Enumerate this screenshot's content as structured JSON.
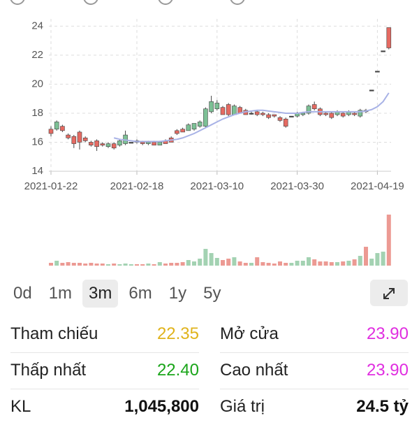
{
  "chart_data": {
    "type": "candlestick",
    "categories": [
      "2021-01-22",
      null,
      null,
      null,
      null,
      null,
      null,
      null,
      null,
      null,
      null,
      null,
      null,
      null,
      null,
      "2021-02-18",
      null,
      null,
      null,
      null,
      null,
      null,
      null,
      null,
      null,
      null,
      null,
      null,
      null,
      "2021-03-10",
      null,
      null,
      null,
      null,
      null,
      null,
      null,
      null,
      null,
      null,
      null,
      null,
      null,
      "2021-03-30",
      null,
      null,
      null,
      null,
      null,
      null,
      null,
      null,
      null,
      null,
      null,
      null,
      null,
      "2021-04-19",
      null,
      null
    ],
    "ohlc": [
      [
        16.9,
        17.1,
        16.4,
        16.6
      ],
      [
        16.9,
        17.5,
        16.8,
        17.4
      ],
      [
        17.1,
        17.2,
        16.7,
        16.8
      ],
      [
        16.5,
        16.6,
        16.2,
        16.3
      ],
      [
        16.4,
        16.5,
        15.6,
        15.9
      ],
      [
        16.7,
        16.8,
        15.5,
        16.0
      ],
      [
        16.3,
        16.4,
        16.0,
        16.1
      ],
      [
        16.0,
        16.1,
        15.7,
        15.8
      ],
      [
        16.1,
        16.2,
        15.4,
        15.7
      ],
      [
        15.9,
        16.0,
        15.7,
        15.8
      ],
      [
        15.7,
        16.0,
        15.6,
        15.9
      ],
      [
        15.9,
        16.0,
        15.5,
        15.6
      ],
      [
        15.8,
        16.2,
        15.7,
        16.1
      ],
      [
        15.9,
        16.8,
        15.8,
        16.5
      ],
      [
        16.0,
        16.0,
        16.0,
        16.0
      ],
      [
        16.1,
        16.2,
        15.9,
        16.0
      ],
      [
        16.0,
        16.1,
        15.8,
        15.9
      ],
      [
        15.9,
        16.1,
        15.8,
        16.0
      ],
      [
        16.0,
        16.1,
        15.8,
        15.8
      ],
      [
        15.8,
        16.1,
        15.8,
        16.0
      ],
      [
        16.1,
        16.2,
        15.9,
        15.9
      ],
      [
        16.3,
        16.4,
        16.0,
        16.0
      ],
      [
        16.8,
        16.9,
        16.5,
        16.6
      ],
      [
        16.9,
        17.0,
        16.7,
        16.7
      ],
      [
        16.8,
        17.3,
        16.8,
        17.2
      ],
      [
        16.9,
        17.3,
        16.8,
        17.3
      ],
      [
        17.1,
        17.5,
        17.0,
        17.4
      ],
      [
        17.1,
        18.4,
        17.0,
        18.3
      ],
      [
        18.1,
        19.2,
        18.0,
        18.8
      ],
      [
        18.3,
        18.9,
        18.2,
        18.7
      ],
      [
        18.4,
        18.5,
        17.9,
        17.9
      ],
      [
        18.6,
        18.7,
        17.8,
        17.9
      ],
      [
        17.9,
        18.6,
        17.9,
        18.5
      ],
      [
        18.4,
        18.5,
        18.0,
        18.0
      ],
      [
        18.2,
        18.3,
        17.9,
        17.9
      ],
      [
        18.0,
        18.1,
        17.9,
        18.0
      ],
      [
        18.1,
        18.2,
        17.8,
        17.9
      ],
      [
        18.0,
        18.1,
        17.8,
        17.9
      ],
      [
        17.9,
        18.0,
        17.6,
        17.7
      ],
      [
        17.9,
        17.9,
        17.7,
        17.8
      ],
      [
        17.7,
        17.8,
        17.4,
        17.5
      ],
      [
        17.6,
        17.7,
        17.0,
        17.1
      ],
      [
        17.8,
        17.8,
        17.8,
        17.8
      ],
      [
        17.8,
        18.1,
        17.7,
        18.0
      ],
      [
        17.9,
        18.1,
        17.8,
        18.0
      ],
      [
        18.0,
        18.6,
        17.9,
        18.5
      ],
      [
        18.6,
        18.8,
        18.2,
        18.3
      ],
      [
        18.3,
        18.4,
        17.8,
        17.9
      ],
      [
        18.0,
        18.1,
        17.8,
        17.9
      ],
      [
        18.0,
        18.1,
        17.6,
        17.7
      ],
      [
        17.9,
        18.2,
        17.8,
        18.1
      ],
      [
        18.0,
        18.1,
        17.7,
        17.8
      ],
      [
        17.9,
        18.2,
        17.8,
        18.1
      ],
      [
        18.0,
        18.1,
        17.8,
        17.9
      ],
      [
        17.8,
        18.3,
        17.7,
        18.2
      ],
      [
        18.2,
        18.3,
        18.0,
        18.1
      ],
      [
        19.6,
        19.6,
        19.6,
        19.6
      ],
      [
        20.9,
        20.9,
        20.9,
        20.9
      ],
      [
        22.3,
        22.3,
        22.3,
        22.3
      ],
      [
        23.9,
        23.9,
        22.4,
        22.5
      ]
    ],
    "up_color": "#7cc095",
    "down_color": "#e56a62",
    "ma": {
      "color": "#a8b2e6",
      "values": [
        null,
        null,
        null,
        null,
        null,
        null,
        null,
        null,
        null,
        null,
        null,
        16.3,
        16.2,
        16.15,
        16.1,
        16.05,
        16.05,
        16.05,
        16.05,
        16.05,
        16.1,
        16.15,
        16.2,
        16.3,
        16.45,
        16.6,
        16.8,
        17.0,
        17.2,
        17.4,
        17.6,
        17.75,
        17.9,
        18.0,
        18.1,
        18.15,
        18.2,
        18.2,
        18.15,
        18.1,
        18.05,
        18.0,
        18.0,
        18.0,
        18.05,
        18.1,
        18.1,
        18.1,
        18.1,
        18.1,
        18.1,
        18.1,
        18.1,
        18.1,
        18.1,
        18.15,
        18.25,
        18.45,
        18.8,
        19.4
      ]
    },
    "volume": {
      "up_color": "#a3d2b2",
      "down_color": "#ec9a93",
      "values": [
        57200,
        100100,
        57200,
        71500,
        57200,
        57200,
        42900,
        57200,
        42900,
        42900,
        28600,
        42900,
        28600,
        42900,
        28600,
        28600,
        28600,
        42900,
        28600,
        71500,
        42900,
        57200,
        57200,
        71500,
        114400,
        85800,
        143000,
        343200,
        257400,
        157300,
        114400,
        143000,
        171600,
        85800,
        57200,
        57200,
        171600,
        71500,
        57200,
        42900,
        85800,
        57200,
        57200,
        100100,
        100100,
        171600,
        128700,
        85800,
        85800,
        71500,
        71500,
        85800,
        100100,
        128700,
        200200,
        386100,
        143000,
        257400,
        286000,
        1045800
      ]
    },
    "ylim": [
      14,
      24.5
    ],
    "yticks": [
      14,
      16,
      18,
      20,
      22,
      24
    ],
    "grid": true
  },
  "ranges": {
    "items": [
      "0d",
      "1m",
      "3m",
      "6m",
      "1y",
      "5y"
    ],
    "selected": 2
  },
  "stats": [
    {
      "label": "Tham chiếu",
      "value": "22.35",
      "color": "#e0b31c",
      "bold": false
    },
    {
      "label": "Mở cửa",
      "value": "23.90",
      "color": "#e02ee0",
      "bold": false
    },
    {
      "label": "Thấp nhất",
      "value": "22.40",
      "color": "#1aa51a",
      "bold": false
    },
    {
      "label": "Cao nhất",
      "value": "23.90",
      "color": "#e02ee0",
      "bold": false
    },
    {
      "label": "KL",
      "value": "1,045,800",
      "color": "#111111",
      "bold": true
    },
    {
      "label": "Giá trị",
      "value": "24.5 tỷ",
      "color": "#111111",
      "bold": true
    }
  ]
}
